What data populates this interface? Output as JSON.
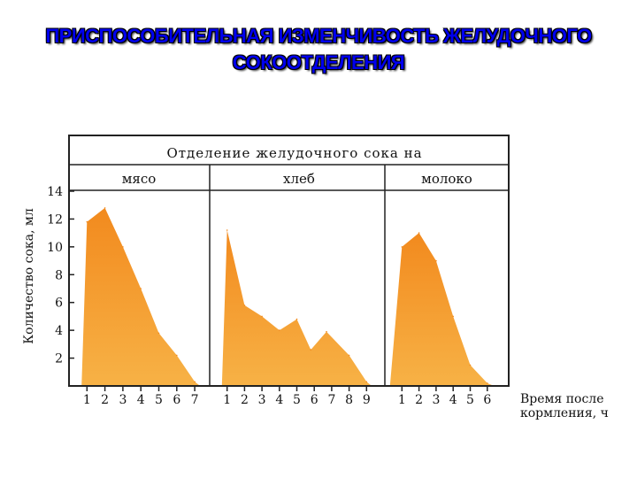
{
  "title": {
    "line1": "ПРИСПОСОБИТЕЛЬНАЯ  ИЗМЕНЧИВОСТЬ ЖЕЛУДОЧНОГО",
    "line2": "СОКООТДЕЛЕНИЯ"
  },
  "colors": {
    "fill": "#f28a1e",
    "fill_light": "#f7b246",
    "frame": "#222222",
    "title": "#0000ee"
  },
  "chart_data": {
    "type": "area",
    "header": "Отделение  желудочного сока на",
    "ylabel": "Количество сока, мл",
    "xlabel_line1": "Время после",
    "xlabel_line2": "кормления, ч",
    "ylim": [
      0,
      14
    ],
    "yticks": [
      2,
      4,
      6,
      8,
      10,
      12,
      14
    ],
    "grid": false,
    "panels": [
      {
        "name": "мясо",
        "xticks": [
          "1",
          "2",
          "3",
          "4",
          "5",
          "6",
          "7"
        ],
        "x": [
          0.7,
          1,
          2,
          3,
          4,
          5,
          6,
          7,
          7.3
        ],
        "y": [
          0,
          11.8,
          12.8,
          10,
          7,
          3.8,
          2.2,
          0.3,
          0
        ]
      },
      {
        "name": "хлеб",
        "xticks": [
          "1",
          "2",
          "3",
          "4",
          "5",
          "6",
          "7",
          "8",
          "9"
        ],
        "x": [
          0.7,
          1,
          2,
          3,
          4,
          5,
          5.8,
          6.7,
          8,
          9,
          9.3
        ],
        "y": [
          0,
          11.2,
          5.8,
          5,
          4,
          4.8,
          2.6,
          3.9,
          2.2,
          0.3,
          0
        ]
      },
      {
        "name": "молоко",
        "xticks": [
          "1",
          "2",
          "3",
          "4",
          "5",
          "6"
        ],
        "x": [
          0.3,
          1,
          2,
          3,
          4,
          5,
          6,
          6.4
        ],
        "y": [
          0,
          10,
          11,
          9,
          5,
          1.5,
          0.2,
          0
        ]
      }
    ]
  }
}
